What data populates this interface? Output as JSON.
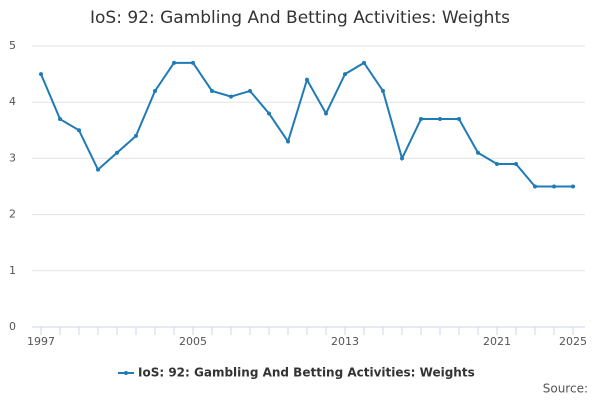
{
  "chart_data": {
    "type": "line",
    "title": "IoS: 92: Gambling And Betting Activities: Weights",
    "x": [
      1997,
      1998,
      1999,
      2000,
      2001,
      2002,
      2003,
      2004,
      2005,
      2006,
      2007,
      2008,
      2009,
      2010,
      2011,
      2012,
      2013,
      2014,
      2015,
      2016,
      2017,
      2018,
      2019,
      2020,
      2021,
      2022,
      2023,
      2024,
      2025
    ],
    "series": [
      {
        "name": "IoS: 92: Gambling And Betting Activities: Weights",
        "color": "#1f7bb6",
        "values": [
          4.5,
          3.7,
          3.5,
          2.8,
          3.1,
          3.4,
          4.2,
          4.7,
          4.7,
          4.2,
          4.1,
          4.2,
          3.8,
          3.3,
          4.4,
          3.8,
          4.5,
          4.7,
          4.2,
          3.0,
          3.7,
          3.7,
          3.7,
          3.1,
          2.9,
          2.9,
          2.5,
          2.5,
          2.5
        ]
      }
    ],
    "xlim": [
      1997,
      2025
    ],
    "xticks": [
      1997,
      2005,
      2013,
      2021,
      2025
    ],
    "ylim": [
      0,
      5
    ],
    "yticks": [
      0,
      1,
      2,
      3,
      4,
      5
    ],
    "grid": true,
    "source": "Source:"
  }
}
